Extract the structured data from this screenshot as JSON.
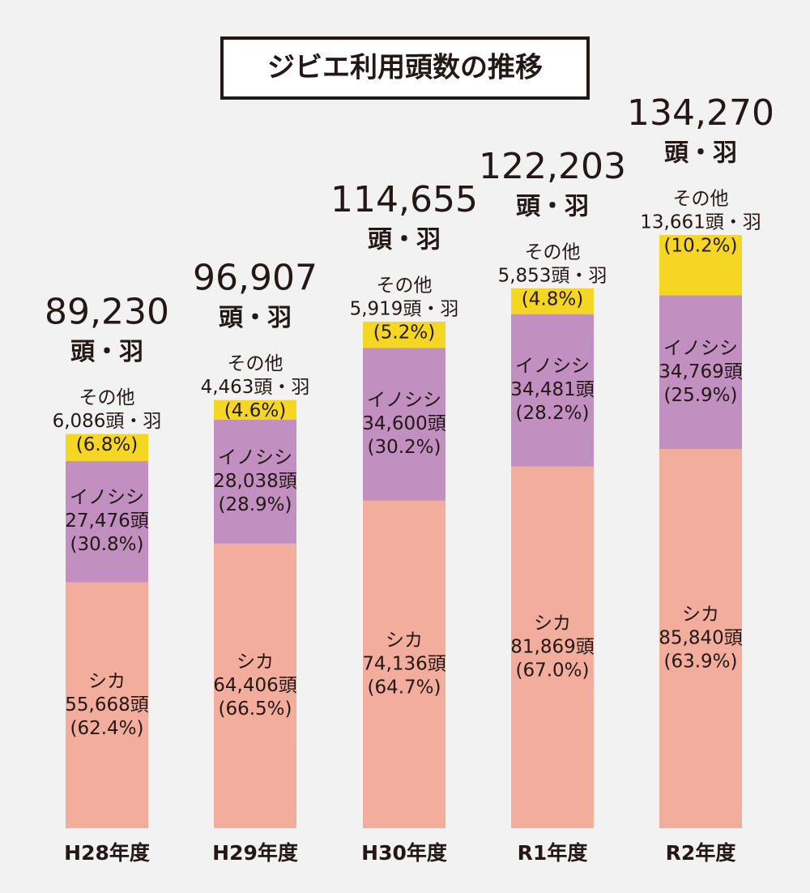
{
  "chart_data": {
    "type": "stacked-bar",
    "title": "ジビエ利用頭数の推移",
    "categories": [
      "H28年度",
      "H29年度",
      "H30年度",
      "R1年度",
      "R2年度"
    ],
    "series": [
      {
        "name": "シカ",
        "color": "#f2ad9c",
        "values": [
          55668,
          64406,
          74136,
          81869,
          85840
        ],
        "value_labels": [
          "55,668頭",
          "64,406頭",
          "74,136頭",
          "81,869頭",
          "85,840頭"
        ],
        "share_labels": [
          "(62.4%)",
          "(66.5%)",
          "(64.7%)",
          "(67.0%)",
          "(63.9%)"
        ]
      },
      {
        "name": "イノシシ",
        "color": "#c18fc0",
        "values": [
          27476,
          28038,
          34600,
          34481,
          34769
        ],
        "value_labels": [
          "27,476頭",
          "28,038頭",
          "34,600頭",
          "34,481頭",
          "34,769頭"
        ],
        "share_labels": [
          "(30.8%)",
          "(28.9%)",
          "(30.2%)",
          "(28.2%)",
          "(25.9%)"
        ]
      },
      {
        "name": "その他",
        "color": "#f5d623",
        "values": [
          6086,
          4463,
          5919,
          5853,
          13661
        ],
        "value_labels": [
          "6,086頭・羽",
          "4,463頭・羽",
          "5,919頭・羽",
          "5,853頭・羽",
          "13,661頭・羽"
        ],
        "share_labels": [
          "(6.8%)",
          "(4.6%)",
          "(5.2%)",
          "(4.8%)",
          "(10.2%)"
        ]
      }
    ],
    "totals": [
      89230,
      96907,
      114655,
      122203,
      134270
    ],
    "total_labels": [
      "89,230",
      "96,907",
      "114,655",
      "122,203",
      "134,270"
    ],
    "total_unit": "頭・羽"
  }
}
